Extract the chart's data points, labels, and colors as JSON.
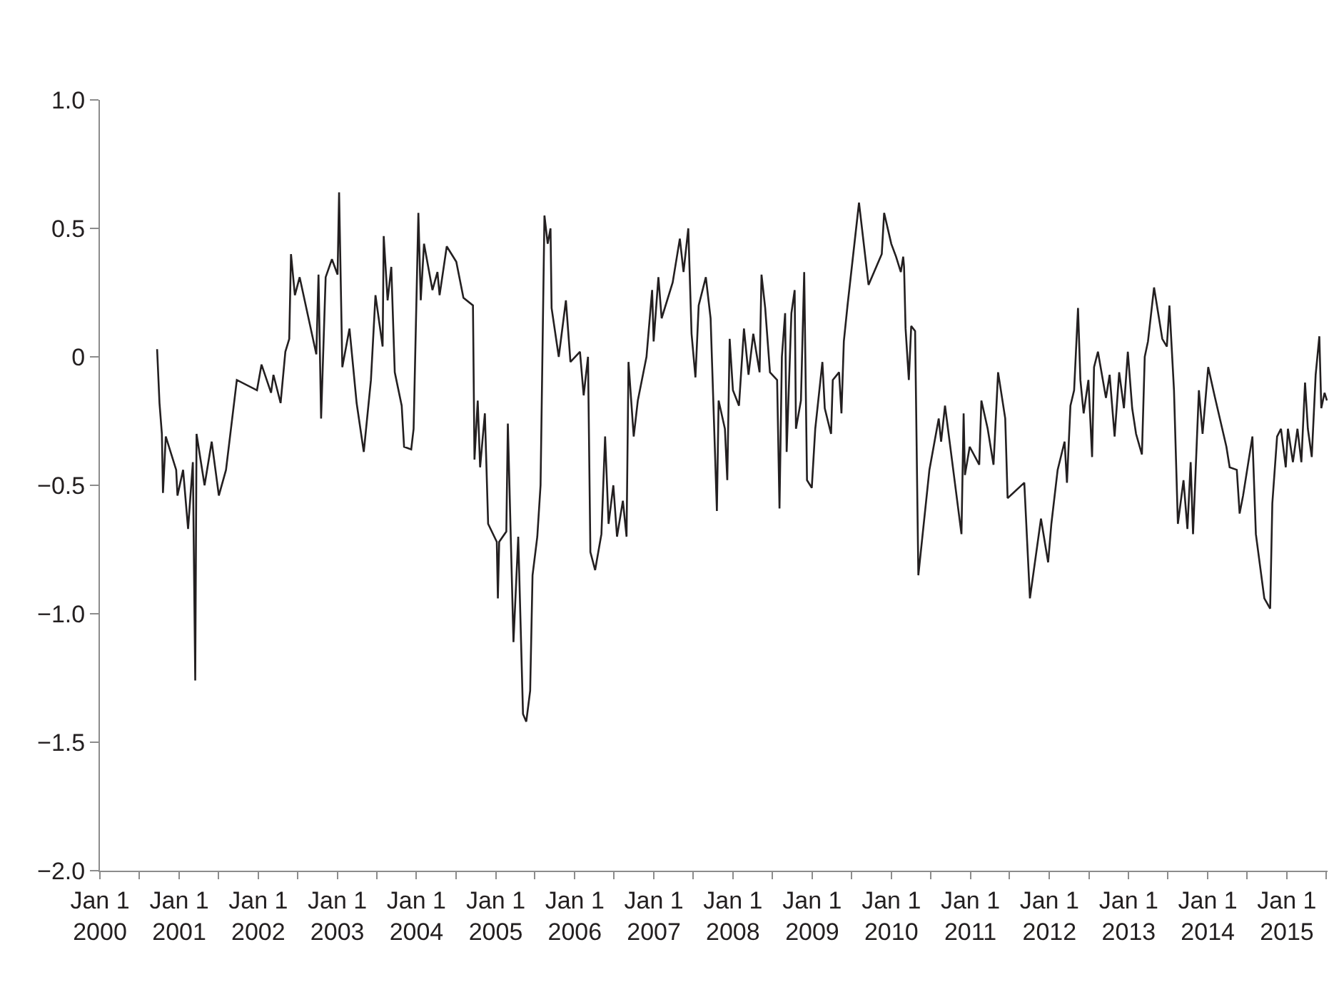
{
  "chart_data": {
    "type": "line",
    "color": "#231f20",
    "grid": false,
    "marker": "none",
    "line_style": "solid",
    "xlim": [
      "2000-01-01",
      "2015-07-08"
    ],
    "xticks": [
      {
        "value": "2000-01-01",
        "label": "Jan 1\n2000"
      },
      {
        "value": "2000-07-01",
        "label": null
      },
      {
        "value": "2001-01-01",
        "label": "Jan 1\n2001"
      },
      {
        "value": "2001-07-01",
        "label": null
      },
      {
        "value": "2002-01-01",
        "label": "Jan 1\n2002"
      },
      {
        "value": "2002-07-01",
        "label": null
      },
      {
        "value": "2003-01-01",
        "label": "Jan 1\n2003"
      },
      {
        "value": "2003-07-01",
        "label": null
      },
      {
        "value": "2004-01-01",
        "label": "Jan 1\n2004"
      },
      {
        "value": "2004-07-01",
        "label": null
      },
      {
        "value": "2005-01-01",
        "label": "Jan 1\n2005"
      },
      {
        "value": "2005-07-01",
        "label": null
      },
      {
        "value": "2006-01-01",
        "label": "Jan 1\n2006"
      },
      {
        "value": "2006-07-01",
        "label": null
      },
      {
        "value": "2007-01-01",
        "label": "Jan 1\n2007"
      },
      {
        "value": "2007-07-01",
        "label": null
      },
      {
        "value": "2008-01-01",
        "label": "Jan 1\n2008"
      },
      {
        "value": "2008-07-01",
        "label": null
      },
      {
        "value": "2009-01-01",
        "label": "Jan 1\n2009"
      },
      {
        "value": "2009-07-01",
        "label": null
      },
      {
        "value": "2010-01-01",
        "label": "Jan 1\n2010"
      },
      {
        "value": "2010-07-01",
        "label": null
      },
      {
        "value": "2011-01-01",
        "label": "Jan 1\n2011"
      },
      {
        "value": "2011-07-01",
        "label": null
      },
      {
        "value": "2012-01-01",
        "label": "Jan 1\n2012"
      },
      {
        "value": "2012-07-01",
        "label": null
      },
      {
        "value": "2013-01-01",
        "label": "Jan 1\n2013"
      },
      {
        "value": "2013-07-01",
        "label": null
      },
      {
        "value": "2014-01-01",
        "label": "Jan 1\n2014"
      },
      {
        "value": "2014-07-01",
        "label": null
      },
      {
        "value": "2015-01-01",
        "label": "Jan 1\n2015"
      },
      {
        "value": "2015-07-01",
        "label": null
      }
    ],
    "ylim": [
      -2,
      1
    ],
    "yticks": [
      {
        "value": -2,
        "label": "−2.0"
      },
      {
        "value": -1.5,
        "label": "−1.5"
      },
      {
        "value": -1,
        "label": "−1.0"
      },
      {
        "value": -0.5,
        "label": "−0.5"
      },
      0,
      {
        "value": 0.5,
        "label": "0.5"
      },
      {
        "value": 1,
        "label": "1.0"
      }
    ],
    "x": [
      "2000-09-21",
      "2000-10-02",
      "2000-10-13",
      "2000-10-18",
      "2000-10-31",
      "2000-12-18",
      "2000-12-24",
      "2001-01-19",
      "2001-02-11",
      "2001-03-05",
      "2001-03-16",
      "2001-03-22",
      "2001-04-28",
      "2001-05-31",
      "2001-07-03",
      "2001-08-05",
      "2001-09-24",
      "2001-12-26",
      "2002-01-16",
      "2002-03-01",
      "2002-03-12",
      "2002-04-14",
      "2002-05-06",
      "2002-05-24",
      "2002-06-01",
      "2002-06-19",
      "2002-07-11",
      "2002-09-26",
      "2002-10-06",
      "2002-10-18",
      "2002-11-08",
      "2002-12-07",
      "2003-01-02",
      "2003-01-09",
      "2003-01-24",
      "2003-02-26",
      "2003-03-31",
      "2003-05-03",
      "2003-06-05",
      "2003-06-26",
      "2003-07-29",
      "2003-08-03",
      "2003-08-21",
      "2003-09-07",
      "2003-09-23",
      "2003-10-25",
      "2003-11-05",
      "2003-12-08",
      "2003-12-19",
      "2004-01-10",
      "2004-01-21",
      "2004-02-05",
      "2004-03-15",
      "2004-04-07",
      "2004-04-17",
      "2004-05-20",
      "2004-07-03",
      "2004-08-05",
      "2004-09-18",
      "2004-09-25",
      "2004-10-10",
      "2004-10-21",
      "2004-11-12",
      "2004-11-27",
      "2005-01-06",
      "2005-01-11",
      "2005-01-17",
      "2005-02-19",
      "2005-02-26",
      "2005-03-24",
      "2005-04-15",
      "2005-05-07",
      "2005-05-22",
      "2005-06-09",
      "2005-06-20",
      "2005-07-12",
      "2005-07-27",
      "2005-08-14",
      "2005-08-29",
      "2005-09-11",
      "2005-09-16",
      "2005-10-19",
      "2005-11-21",
      "2005-12-12",
      "2006-01-25",
      "2006-02-11",
      "2006-03-03",
      "2006-03-14",
      "2006-04-05",
      "2006-05-04",
      "2006-05-21",
      "2006-06-06",
      "2006-06-28",
      "2006-07-15",
      "2006-08-11",
      "2006-08-28",
      "2006-09-06",
      "2006-09-30",
      "2006-10-19",
      "2006-11-28",
      "2006-12-24",
      "2006-12-31",
      "2007-01-22",
      "2007-02-06",
      "2007-03-29",
      "2007-05-01",
      "2007-05-18",
      "2007-06-09",
      "2007-06-24",
      "2007-07-12",
      "2007-07-27",
      "2007-08-29",
      "2007-09-20",
      "2007-10-19",
      "2007-10-27",
      "2007-11-25",
      "2007-12-06",
      "2007-12-17",
      "2008-01-01",
      "2008-01-29",
      "2008-02-21",
      "2008-03-13",
      "2008-04-04",
      "2008-05-03",
      "2008-05-12",
      "2008-05-29",
      "2008-06-20",
      "2008-07-23",
      "2008-08-03",
      "2008-08-14",
      "2008-08-29",
      "2008-09-05",
      "2008-09-27",
      "2008-10-12",
      "2008-10-18",
      "2008-11-10",
      "2008-11-25",
      "2008-12-08",
      "2008-12-30",
      "2009-01-15",
      "2009-02-17",
      "2009-02-28",
      "2009-03-29",
      "2009-04-06",
      "2009-05-05",
      "2009-05-16",
      "2009-05-27",
      "2009-06-13",
      "2009-08-05",
      "2009-09-18",
      "2009-11-18",
      "2009-11-29",
      "2010-01-01",
      "2010-01-23",
      "2010-02-14",
      "2010-02-25",
      "2010-03-01",
      "2010-03-08",
      "2010-03-23",
      "2010-04-03",
      "2010-04-21",
      "2010-05-06",
      "2010-06-26",
      "2010-08-08",
      "2010-08-19",
      "2010-09-06",
      "2010-11-21",
      "2010-12-01",
      "2010-12-07",
      "2010-12-29",
      "2011-02-11",
      "2011-02-21",
      "2011-03-22",
      "2011-04-18",
      "2011-05-09",
      "2011-06-11",
      "2011-06-22",
      "2011-09-07",
      "2011-10-03",
      "2011-11-23",
      "2011-12-26",
      "2012-01-10",
      "2012-02-08",
      "2012-03-11",
      "2012-03-22",
      "2012-04-07",
      "2012-04-24",
      "2012-05-12",
      "2012-05-23",
      "2012-06-07",
      "2012-06-29",
      "2012-07-16",
      "2012-07-25",
      "2012-08-12",
      "2012-09-18",
      "2012-10-05",
      "2012-10-28",
      "2012-11-18",
      "2012-12-10",
      "2012-12-28",
      "2013-01-17",
      "2013-02-04",
      "2013-03-03",
      "2013-03-16",
      "2013-03-31",
      "2013-04-28",
      "2013-06-05",
      "2013-06-26",
      "2013-07-08",
      "2013-07-29",
      "2013-08-16",
      "2013-09-11",
      "2013-09-29",
      "2013-10-14",
      "2013-10-25",
      "2013-11-21",
      "2013-12-08",
      "2014-01-03",
      "2014-02-01",
      "2014-03-28",
      "2014-04-12",
      "2014-05-15",
      "2014-05-28",
      "2014-06-13",
      "2014-07-26",
      "2014-08-11",
      "2014-09-19",
      "2014-10-16",
      "2014-10-26",
      "2014-11-17",
      "2014-12-05",
      "2014-12-27",
      "2015-01-06",
      "2015-01-29",
      "2015-02-19",
      "2015-03-09",
      "2015-03-26",
      "2015-04-08",
      "2015-04-26",
      "2015-05-14",
      "2015-05-31",
      "2015-06-09",
      "2015-06-24",
      "2015-07-05"
    ],
    "values": [
      0.03,
      -0.18,
      -0.3,
      -0.53,
      -0.31,
      -0.44,
      -0.54,
      -0.44,
      -0.67,
      -0.41,
      -1.26,
      -0.3,
      -0.5,
      -0.33,
      -0.54,
      -0.44,
      -0.09,
      -0.13,
      -0.03,
      -0.14,
      -0.07,
      -0.18,
      0.02,
      0.07,
      0.4,
      0.24,
      0.31,
      0.01,
      0.32,
      -0.24,
      0.31,
      0.38,
      0.32,
      0.64,
      -0.04,
      0.11,
      -0.18,
      -0.37,
      -0.09,
      0.24,
      0.04,
      0.47,
      0.22,
      0.35,
      -0.06,
      -0.19,
      -0.35,
      -0.36,
      -0.28,
      0.56,
      0.22,
      0.44,
      0.26,
      0.33,
      0.24,
      0.43,
      0.37,
      0.23,
      0.2,
      -0.4,
      -0.17,
      -0.43,
      -0.22,
      -0.65,
      -0.72,
      -0.94,
      -0.72,
      -0.68,
      -0.26,
      -1.11,
      -0.7,
      -1.39,
      -1.42,
      -1.3,
      -0.85,
      -0.7,
      -0.5,
      0.55,
      0.44,
      0.5,
      0.19,
      0.0,
      0.22,
      -0.02,
      0.02,
      -0.15,
      0.0,
      -0.76,
      -0.83,
      -0.69,
      -0.31,
      -0.65,
      -0.5,
      -0.7,
      -0.56,
      -0.7,
      -0.02,
      -0.31,
      -0.17,
      0.0,
      0.26,
      0.06,
      0.31,
      0.15,
      0.29,
      0.46,
      0.33,
      0.5,
      0.09,
      -0.08,
      0.2,
      0.31,
      0.15,
      -0.6,
      -0.17,
      -0.28,
      -0.48,
      0.07,
      -0.13,
      -0.19,
      0.11,
      -0.07,
      0.09,
      -0.06,
      0.32,
      0.19,
      -0.06,
      -0.09,
      -0.59,
      0.0,
      0.17,
      -0.37,
      0.17,
      0.26,
      -0.28,
      -0.17,
      0.33,
      -0.48,
      -0.51,
      -0.28,
      -0.02,
      -0.2,
      -0.3,
      -0.09,
      -0.06,
      -0.22,
      0.06,
      0.2,
      0.6,
      0.28,
      0.4,
      0.56,
      0.44,
      0.39,
      0.33,
      0.39,
      0.35,
      0.11,
      -0.09,
      0.12,
      0.1,
      -0.85,
      -0.44,
      -0.24,
      -0.33,
      -0.19,
      -0.69,
      -0.22,
      -0.46,
      -0.35,
      -0.42,
      -0.17,
      -0.28,
      -0.42,
      -0.06,
      -0.24,
      -0.55,
      -0.49,
      -0.94,
      -0.63,
      -0.8,
      -0.65,
      -0.44,
      -0.33,
      -0.49,
      -0.19,
      -0.13,
      0.19,
      -0.09,
      -0.22,
      -0.09,
      -0.39,
      -0.04,
      0.02,
      -0.16,
      -0.07,
      -0.31,
      -0.06,
      -0.2,
      0.02,
      -0.2,
      -0.3,
      -0.38,
      0.0,
      0.06,
      0.27,
      0.07,
      0.04,
      0.2,
      -0.13,
      -0.65,
      -0.48,
      -0.67,
      -0.41,
      -0.69,
      -0.13,
      -0.3,
      -0.04,
      -0.15,
      -0.35,
      -0.43,
      -0.44,
      -0.61,
      -0.54,
      -0.31,
      -0.69,
      -0.94,
      -0.98,
      -0.57,
      -0.31,
      -0.28,
      -0.43,
      -0.28,
      -0.41,
      -0.28,
      -0.41,
      -0.1,
      -0.28,
      -0.39,
      -0.07,
      0.08,
      -0.2,
      -0.14,
      -0.17
    ]
  }
}
